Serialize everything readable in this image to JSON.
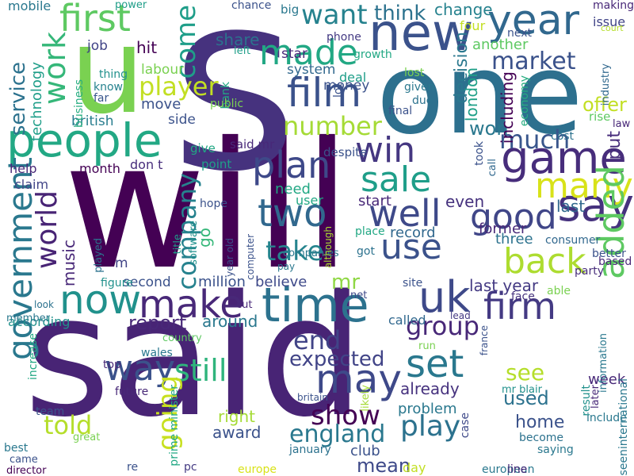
{
  "words": [
    {
      "text": "said",
      "color": "#482475"
    },
    {
      "text": "will",
      "color": "#440154"
    },
    {
      "text": "s",
      "color": "#46327e"
    },
    {
      "text": "one",
      "color": "#2d708e"
    },
    {
      "text": "u",
      "color": "#7ad151"
    },
    {
      "text": "people",
      "color": "#22a884"
    },
    {
      "text": "new",
      "color": "#3b528b"
    },
    {
      "text": "year",
      "color": "#31688e"
    },
    {
      "text": "first",
      "color": "#5ec962"
    },
    {
      "text": "game",
      "color": "#472d7b"
    },
    {
      "text": "time",
      "color": "#2c728e"
    },
    {
      "text": "uk",
      "color": "#3e4989"
    },
    {
      "text": "say",
      "color": "#46327e"
    },
    {
      "text": "film",
      "color": "#3b528b"
    },
    {
      "text": "made",
      "color": "#22a884"
    },
    {
      "text": "work",
      "color": "#35b779"
    },
    {
      "text": "win",
      "color": "#453781"
    },
    {
      "text": "plan",
      "color": "#3e4989"
    },
    {
      "text": "sale",
      "color": "#1f9e89"
    },
    {
      "text": "two",
      "color": "#31688e"
    },
    {
      "text": "well",
      "color": "#3e4989"
    },
    {
      "text": "use",
      "color": "#3b528b"
    },
    {
      "text": "good",
      "color": "#404688"
    },
    {
      "text": "many",
      "color": "#d8e219"
    },
    {
      "text": "back",
      "color": "#addc30"
    },
    {
      "text": "make",
      "color": "#482878"
    },
    {
      "text": "now",
      "color": "#21918c"
    },
    {
      "text": "firm",
      "color": "#443a83"
    },
    {
      "text": "added",
      "color": "#5ec962"
    },
    {
      "text": "way",
      "color": "#3b528b"
    },
    {
      "text": "still",
      "color": "#2fb47c"
    },
    {
      "text": "may",
      "color": "#3e4989"
    },
    {
      "text": "set",
      "color": "#2a788e"
    },
    {
      "text": "government",
      "color": "#2a788e"
    },
    {
      "text": "world",
      "color": "#482475"
    },
    {
      "text": "want",
      "color": "#26828e"
    },
    {
      "text": "think",
      "color": "#2c728e"
    },
    {
      "text": "come",
      "color": "#1f9e89"
    },
    {
      "text": "player",
      "color": "#c2df23"
    },
    {
      "text": "market",
      "color": "#3b528b"
    },
    {
      "text": "service",
      "color": "#2c728e"
    },
    {
      "text": "technology",
      "color": "#1f9e89"
    },
    {
      "text": "job",
      "color": "#414487"
    },
    {
      "text": "hit",
      "color": "#440154"
    },
    {
      "text": "labour",
      "color": "#7ad151"
    },
    {
      "text": "move",
      "color": "#3b528b"
    },
    {
      "text": "british",
      "color": "#287d8e"
    },
    {
      "text": "side",
      "color": "#3b528b"
    },
    {
      "text": "number",
      "color": "#a5db36"
    },
    {
      "text": "company",
      "color": "#26828e"
    },
    {
      "text": "told",
      "color": "#b5de2b"
    },
    {
      "text": "going",
      "color": "#c8e020"
    },
    {
      "text": "show",
      "color": "#440154"
    },
    {
      "text": "england",
      "color": "#2a788e"
    },
    {
      "text": "play",
      "color": "#2c728e"
    },
    {
      "text": "group",
      "color": "#482878"
    },
    {
      "text": "end",
      "color": "#414487"
    },
    {
      "text": "expected",
      "color": "#414487"
    },
    {
      "text": "report",
      "color": "#482878"
    },
    {
      "text": "around",
      "color": "#2a788e"
    },
    {
      "text": "mr",
      "color": "#8fd744"
    },
    {
      "text": "take",
      "color": "#25848e"
    },
    {
      "text": "music",
      "color": "#482878"
    },
    {
      "text": "money",
      "color": "#3b528b"
    },
    {
      "text": "system",
      "color": "#31688e"
    },
    {
      "text": "deal",
      "color": "#1f9e89"
    },
    {
      "text": "decision",
      "color": "#2a788e"
    },
    {
      "text": "change",
      "color": "#26828e"
    },
    {
      "text": "another",
      "color": "#5ec962"
    },
    {
      "text": "share",
      "color": "#2c728e"
    },
    {
      "text": "star",
      "color": "#482878"
    },
    {
      "text": "phone",
      "color": "#443a83"
    },
    {
      "text": "won",
      "color": "#2a788e"
    },
    {
      "text": "much",
      "color": "#39568c"
    },
    {
      "text": "put",
      "color": "#472d7b"
    },
    {
      "text": "london",
      "color": "#1fa088"
    },
    {
      "text": "including",
      "color": "#440154"
    },
    {
      "text": "offer",
      "color": "#c2df23"
    },
    {
      "text": "mobile",
      "color": "#2a788e"
    },
    {
      "text": "power",
      "color": "#1f9e89"
    },
    {
      "text": "chance",
      "color": "#3b528b"
    },
    {
      "text": "big",
      "color": "#2a788e"
    },
    {
      "text": "four",
      "color": "#c2df23"
    },
    {
      "text": "issue",
      "color": "#414487"
    },
    {
      "text": "making",
      "color": "#482878"
    },
    {
      "text": "court",
      "color": "#b5de2b"
    },
    {
      "text": "next",
      "color": "#3b528b"
    },
    {
      "text": "growth",
      "color": "#22a884"
    },
    {
      "text": "left",
      "color": "#1f9e89"
    },
    {
      "text": "thing",
      "color": "#21918c"
    },
    {
      "text": "know",
      "color": "#26828e"
    },
    {
      "text": "far",
      "color": "#39568c"
    },
    {
      "text": "business",
      "color": "#27ad81"
    },
    {
      "text": "bank",
      "color": "#22a884"
    },
    {
      "text": "public",
      "color": "#7ad151"
    },
    {
      "text": "lot",
      "color": "#3b528b"
    },
    {
      "text": "lost",
      "color": "#7ad151"
    },
    {
      "text": "given",
      "color": "#2a788e"
    },
    {
      "text": "due",
      "color": "#2c728e"
    },
    {
      "text": "final",
      "color": "#3b528b"
    },
    {
      "text": "economy",
      "color": "#27ad81"
    },
    {
      "text": "industry",
      "color": "#31688e"
    },
    {
      "text": "law",
      "color": "#482878"
    },
    {
      "text": "rise",
      "color": "#5ec962"
    },
    {
      "text": "cost",
      "color": "#2c728e"
    },
    {
      "text": "took",
      "color": "#3b528b"
    },
    {
      "text": "call",
      "color": "#31688e"
    },
    {
      "text": "give",
      "color": "#22a884"
    },
    {
      "text": "point",
      "color": "#1fa088"
    },
    {
      "text": "despite",
      "color": "#3b528b"
    },
    {
      "text": "said mr",
      "color": "#482878"
    },
    {
      "text": "month",
      "color": "#440154"
    },
    {
      "text": "don t",
      "color": "#472d7b"
    },
    {
      "text": "help",
      "color": "#482878"
    },
    {
      "text": "claim",
      "color": "#414487"
    },
    {
      "text": "need",
      "color": "#22a884"
    },
    {
      "text": "user",
      "color": "#22a884"
    },
    {
      "text": "start",
      "color": "#482878"
    },
    {
      "text": "even",
      "color": "#46327e"
    },
    {
      "text": "last",
      "color": "#31688e"
    },
    {
      "text": "record",
      "color": "#31688e"
    },
    {
      "text": "former",
      "color": "#482878"
    },
    {
      "text": "three",
      "color": "#2c728e"
    },
    {
      "text": "consumer",
      "color": "#31688e"
    },
    {
      "text": "better",
      "color": "#3b528b"
    },
    {
      "text": "based",
      "color": "#482878"
    },
    {
      "text": "party",
      "color": "#472d7b"
    },
    {
      "text": "able",
      "color": "#7ad151"
    },
    {
      "text": "face",
      "color": "#46327e"
    },
    {
      "text": "last year",
      "color": "#443a83"
    },
    {
      "text": "site",
      "color": "#3b528b"
    },
    {
      "text": "million",
      "color": "#3b528b"
    },
    {
      "text": "believe",
      "color": "#3e4989"
    },
    {
      "text": "second",
      "color": "#3b528b"
    },
    {
      "text": "figure",
      "color": "#21918c"
    },
    {
      "text": "pay",
      "color": "#2a788e"
    },
    {
      "text": "hope",
      "color": "#3b528b"
    },
    {
      "text": "software",
      "color": "#21918c"
    },
    {
      "text": "title",
      "color": "#1f9e89"
    },
    {
      "text": "played",
      "color": "#2c728e"
    },
    {
      "text": "year old",
      "color": "#3b528b"
    },
    {
      "text": "computer",
      "color": "#3b528b"
    },
    {
      "text": "companies",
      "color": "#2a788e"
    },
    {
      "text": "although",
      "color": "#addc30"
    },
    {
      "text": "place",
      "color": "#22a884"
    },
    {
      "text": "got",
      "color": "#2c728e"
    },
    {
      "text": "m",
      "color": "#414487"
    },
    {
      "text": "go",
      "color": "#35b779"
    },
    {
      "text": "according",
      "color": "#21918c"
    },
    {
      "text": "member",
      "color": "#2a788e"
    },
    {
      "text": "look",
      "color": "#2c728e"
    },
    {
      "text": "cut",
      "color": "#482878"
    },
    {
      "text": "net",
      "color": "#3e4989"
    },
    {
      "text": "called",
      "color": "#31688e"
    },
    {
      "text": "lead",
      "color": "#443a83"
    },
    {
      "text": "already",
      "color": "#46327e"
    },
    {
      "text": "problem",
      "color": "#2a788e"
    },
    {
      "text": "see",
      "color": "#b5de2b"
    },
    {
      "text": "used",
      "color": "#2c728e"
    },
    {
      "text": "home",
      "color": "#3b528b"
    },
    {
      "text": "week",
      "color": "#482878"
    },
    {
      "text": "information",
      "color": "#2a788e"
    },
    {
      "text": "later",
      "color": "#482878"
    },
    {
      "text": "result",
      "color": "#21918c"
    },
    {
      "text": "include",
      "color": "#2a788e"
    },
    {
      "text": "become",
      "color": "#2c728e"
    },
    {
      "text": "saying",
      "color": "#2a788e"
    },
    {
      "text": "case",
      "color": "#3e4989"
    },
    {
      "text": "mr blair",
      "color": "#21918c"
    },
    {
      "text": "france",
      "color": "#3b528b"
    },
    {
      "text": "run",
      "color": "#7ad151"
    },
    {
      "text": "country",
      "color": "#5ec962"
    },
    {
      "text": "increase",
      "color": "#22a884"
    },
    {
      "text": "wales",
      "color": "#2a788e"
    },
    {
      "text": "top",
      "color": "#482878"
    },
    {
      "text": "future",
      "color": "#482878"
    },
    {
      "text": "prime minister",
      "color": "#22a884"
    },
    {
      "text": "team",
      "color": "#3b528b"
    },
    {
      "text": "right",
      "color": "#a5db36"
    },
    {
      "text": "award",
      "color": "#3b528b"
    },
    {
      "text": "club",
      "color": "#3b528b"
    },
    {
      "text": "britain",
      "color": "#3b528b"
    },
    {
      "text": "likely",
      "color": "#a5db36"
    },
    {
      "text": "great",
      "color": "#7ad151"
    },
    {
      "text": "best",
      "color": "#2a788e"
    },
    {
      "text": "came",
      "color": "#3b528b"
    },
    {
      "text": "director",
      "color": "#440154"
    },
    {
      "text": "re",
      "color": "#3b528b"
    },
    {
      "text": "pc",
      "color": "#443a83"
    },
    {
      "text": "europe",
      "color": "#d8e219"
    },
    {
      "text": "january",
      "color": "#2c728e"
    },
    {
      "text": "mean",
      "color": "#3e4989"
    },
    {
      "text": "day",
      "color": "#c2df23"
    },
    {
      "text": "european",
      "color": "#2a788e"
    },
    {
      "text": "line",
      "color": "#482878"
    },
    {
      "text": "seeninternational",
      "color": "#2a788e"
    },
    {
      "text": "election",
      "color": "#414487"
    }
  ]
}
